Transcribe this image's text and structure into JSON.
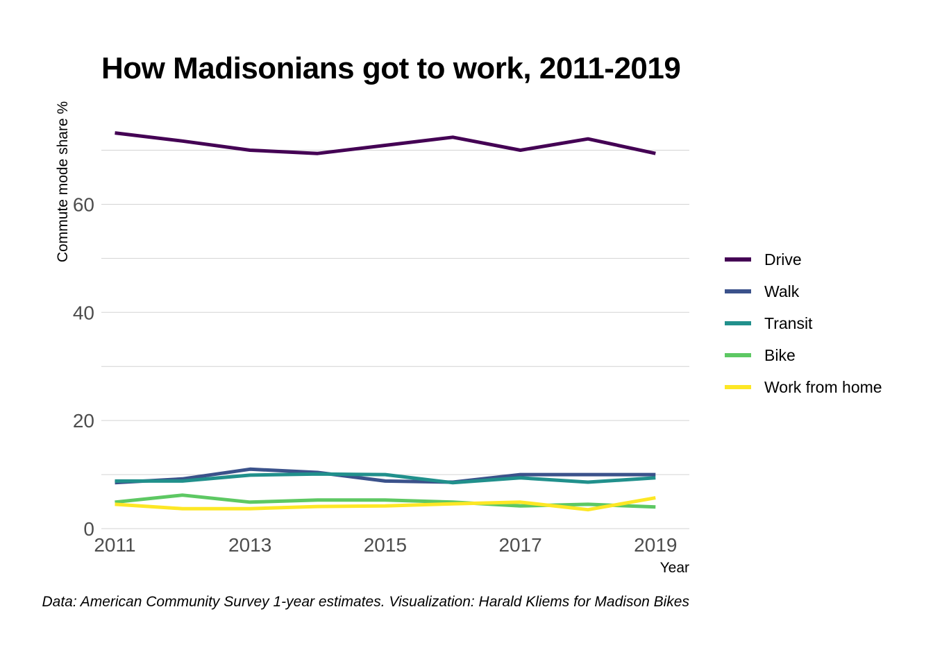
{
  "title": "How Madisonians got to work, 2011-2019",
  "caption": "Data: American Community Survey 1-year estimates. Visualization: Harald Kliems for Madison Bikes",
  "chart_data": {
    "type": "line",
    "title": "How Madisonians got to work, 2011-2019",
    "xlabel": "Year",
    "ylabel": "Commute mode share %",
    "x": [
      2011,
      2012,
      2013,
      2014,
      2015,
      2016,
      2017,
      2018,
      2019
    ],
    "x_ticks": [
      "2011",
      "2013",
      "2015",
      "2017",
      "2019"
    ],
    "y_ticks": [
      "0",
      "20",
      "40",
      "60"
    ],
    "xlim": [
      2010.8,
      2019.5
    ],
    "ylim": [
      0,
      77
    ],
    "grid": true,
    "legend_position": "right",
    "series": [
      {
        "name": "Drive",
        "color": "#440154",
        "values": [
          73.2,
          71.7,
          70.0,
          69.4,
          70.9,
          72.4,
          70.0,
          72.1,
          69.4
        ]
      },
      {
        "name": "Walk",
        "color": "#3B528B",
        "values": [
          8.5,
          9.2,
          11.0,
          10.4,
          8.8,
          8.6,
          10.0,
          10.0,
          10.0
        ]
      },
      {
        "name": "Transit",
        "color": "#21908C",
        "values": [
          8.8,
          8.8,
          9.9,
          10.1,
          10.0,
          8.5,
          9.4,
          8.6,
          9.4
        ]
      },
      {
        "name": "Bike",
        "color": "#5DC863",
        "values": [
          4.9,
          6.2,
          4.9,
          5.3,
          5.3,
          4.9,
          4.2,
          4.5,
          4.0
        ]
      },
      {
        "name": "Work from home",
        "color": "#FDE725",
        "values": [
          4.5,
          3.7,
          3.7,
          4.1,
          4.2,
          4.6,
          4.9,
          3.5,
          5.7
        ]
      }
    ]
  }
}
